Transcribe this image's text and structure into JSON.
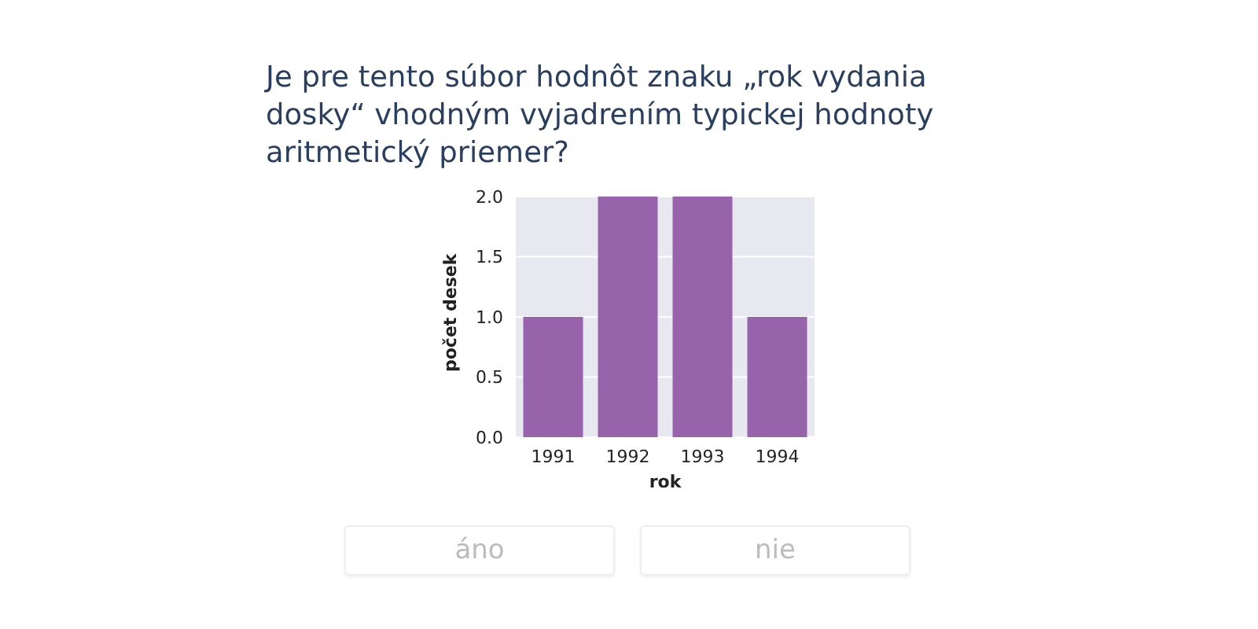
{
  "chart_data": {
    "type": "bar",
    "title": "Je pre tento súbor hodnôt znaku „rok vydania dosky“ vhodným vyjadrením typickej hodnoty aritmetický priemer?",
    "categories": [
      "1991",
      "1992",
      "1993",
      "1994"
    ],
    "values": [
      1,
      2,
      2,
      1
    ],
    "color": "#9764ac",
    "xlabel": "rok",
    "ylabel": "počet desek",
    "ylim": [
      0,
      2
    ],
    "yticks": [
      {
        "value": 0,
        "label": "0.0"
      },
      {
        "value": 0.5,
        "label": "0.5"
      },
      {
        "value": 1,
        "label": "1.0"
      },
      {
        "value": 1.5,
        "label": "1.5"
      },
      {
        "value": 2,
        "label": "2.0"
      }
    ],
    "grid": "y",
    "annotations": [
      "áno",
      "nie"
    ]
  }
}
